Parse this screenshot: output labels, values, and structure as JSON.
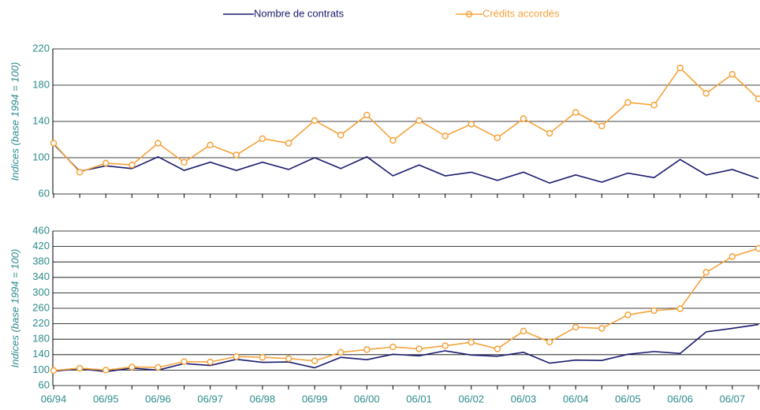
{
  "chart_data": [
    {
      "type": "line",
      "ylabel": "Indices (base 1994 = 100)",
      "ylim": [
        60,
        220
      ],
      "yticks": [
        60,
        100,
        140,
        180,
        220
      ],
      "grid": true,
      "series": [
        {
          "name": "Nombre de contrats",
          "color": "#1a1a6e",
          "marker": null,
          "values": [
            115,
            85,
            91,
            88,
            101,
            86,
            95,
            86,
            95,
            87,
            100,
            88,
            101,
            80,
            92,
            80,
            84,
            75,
            84,
            72,
            81,
            73,
            83,
            78,
            98,
            81,
            87,
            77
          ]
        },
        {
          "name": "Crédits accordés",
          "color": "#f5a33c",
          "marker": "circle",
          "values": [
            116,
            84,
            94,
            92,
            116,
            95,
            114,
            103,
            121,
            116,
            141,
            125,
            147,
            119,
            141,
            124,
            137,
            122,
            143,
            127,
            150,
            135,
            161,
            158,
            199,
            171,
            192,
            165
          ]
        }
      ]
    },
    {
      "type": "line",
      "ylabel": "Indices (base 1994 = 100)",
      "ylim": [
        60,
        460
      ],
      "yticks": [
        60,
        100,
        140,
        180,
        220,
        260,
        300,
        340,
        380,
        420,
        460
      ],
      "grid": true,
      "categories": [
        "06/94",
        null,
        "06/95",
        null,
        "06/96",
        null,
        "06/97",
        null,
        "06/98",
        null,
        "06/99",
        null,
        "06/00",
        null,
        "06/01",
        null,
        "06/02",
        null,
        "06/03",
        null,
        "06/04",
        null,
        "06/05",
        null,
        "06/06",
        null,
        "06/07",
        null
      ],
      "series": [
        {
          "color": "#1a1a6e",
          "marker": null,
          "values": [
            97,
            104,
            96,
            105,
            100,
            117,
            112,
            128,
            120,
            121,
            106,
            133,
            127,
            141,
            137,
            150,
            139,
            136,
            146,
            118,
            126,
            125,
            141,
            148,
            143,
            199,
            208,
            218
          ]
        },
        {
          "color": "#f5a33c",
          "marker": "circle",
          "values": [
            99,
            105,
            100,
            108,
            107,
            122,
            121,
            135,
            133,
            130,
            124,
            146,
            153,
            160,
            155,
            163,
            172,
            155,
            201,
            173,
            211,
            208,
            243,
            254,
            259,
            353,
            394,
            415
          ]
        }
      ]
    }
  ]
}
